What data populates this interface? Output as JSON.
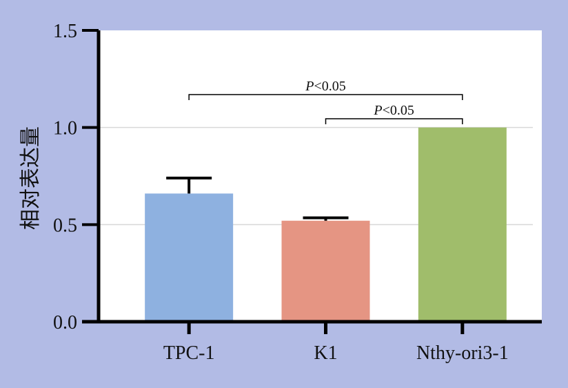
{
  "chart_data": {
    "type": "bar",
    "categories": [
      "TPC-1",
      "K1",
      "Nthy-ori3-1"
    ],
    "values": [
      0.66,
      0.52,
      1.0
    ],
    "errors": [
      0.08,
      0.015,
      0
    ],
    "colors": [
      "#8eb1e0",
      "#e59583",
      "#a0bd6b"
    ],
    "ylabel": "相对表达量",
    "xlabel": "",
    "ylim": [
      0,
      1.5
    ],
    "yticks": [
      "0.0",
      "0.5",
      "1.0",
      "1.5"
    ],
    "grid": true,
    "comparisons": [
      {
        "from": 0,
        "to": 2,
        "label_italic": "P",
        "label_rest": "<0.05",
        "level": 2
      },
      {
        "from": 1,
        "to": 2,
        "label_italic": "P",
        "label_rest": "<0.05",
        "level": 1
      }
    ]
  },
  "colors": {
    "frame_background": "#b2bbe5",
    "plot_background": "#ffffff",
    "grid": "#d8d8d8",
    "axis": "#000000"
  }
}
